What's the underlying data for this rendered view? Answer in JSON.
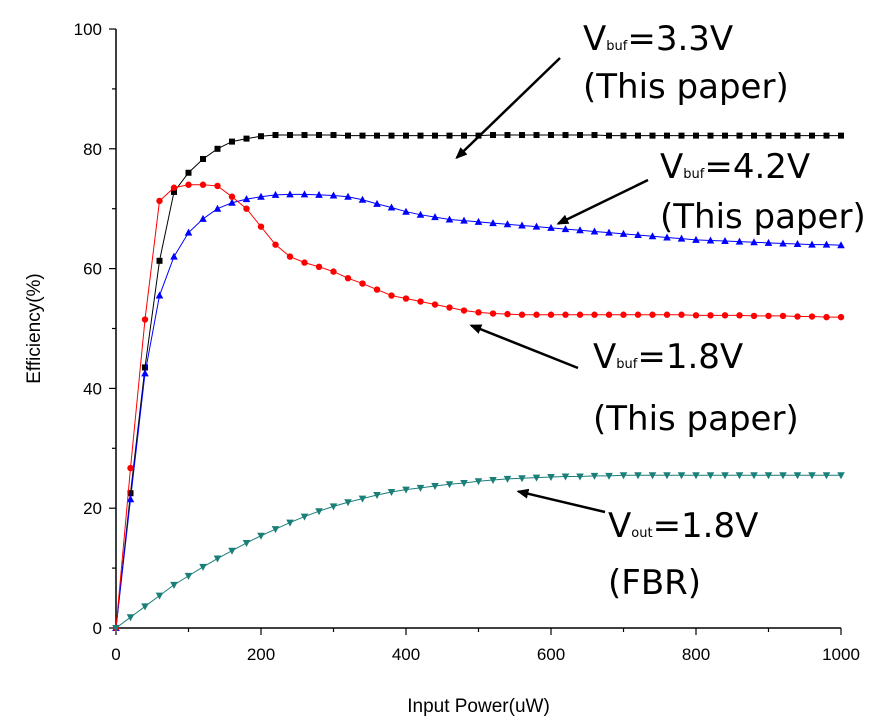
{
  "chart_data": {
    "type": "line",
    "xlabel": "Input Power(uW)",
    "ylabel": "Efficiency(%)",
    "xlim": [
      0,
      1000
    ],
    "ylim": [
      0,
      100
    ],
    "xticks": [
      0,
      200,
      400,
      600,
      800,
      1000
    ],
    "yticks": [
      0,
      20,
      40,
      60,
      80,
      100
    ],
    "grid": false,
    "series": [
      {
        "color": "#000000",
        "marker": "square",
        "x": [
          0,
          20,
          40,
          60,
          80,
          100,
          120,
          140,
          160,
          180,
          200,
          220,
          240,
          260,
          280,
          300,
          320,
          340,
          360,
          380,
          400,
          420,
          440,
          460,
          480,
          500,
          520,
          540,
          560,
          580,
          600,
          620,
          640,
          660,
          680,
          700,
          720,
          740,
          760,
          780,
          800,
          820,
          840,
          860,
          880,
          900,
          920,
          940,
          960,
          980,
          1000
        ],
        "y": [
          0,
          22.5,
          43.5,
          61.3,
          72.8,
          76,
          78.3,
          80,
          81.2,
          81.7,
          82.1,
          82.3,
          82.3,
          82.3,
          82.3,
          82.3,
          82.2,
          82.2,
          82.2,
          82.2,
          82.2,
          82.2,
          82.2,
          82.2,
          82.2,
          82.2,
          82.3,
          82.3,
          82.3,
          82.3,
          82.3,
          82.3,
          82.3,
          82.3,
          82.2,
          82.2,
          82.2,
          82.2,
          82.2,
          82.2,
          82.2,
          82.2,
          82.2,
          82.2,
          82.2,
          82.2,
          82.2,
          82.2,
          82.2,
          82.2,
          82.2
        ]
      },
      {
        "color": "#0000ff",
        "marker": "triangle-up",
        "x": [
          0,
          20,
          40,
          60,
          80,
          100,
          120,
          140,
          160,
          180,
          200,
          220,
          240,
          260,
          280,
          300,
          320,
          340,
          360,
          380,
          400,
          420,
          440,
          460,
          480,
          500,
          520,
          540,
          560,
          580,
          600,
          620,
          640,
          660,
          680,
          700,
          720,
          740,
          760,
          780,
          800,
          820,
          840,
          860,
          880,
          900,
          920,
          940,
          960,
          980,
          1000
        ],
        "y": [
          0,
          21.5,
          42.5,
          55.5,
          62,
          66,
          68.3,
          70,
          71,
          71.6,
          72,
          72.3,
          72.4,
          72.4,
          72.3,
          72.2,
          72,
          71.5,
          70.8,
          70.2,
          69.5,
          69,
          68.6,
          68.2,
          68,
          67.8,
          67.6,
          67.4,
          67.2,
          67,
          66.8,
          66.6,
          66.4,
          66.2,
          66,
          65.8,
          65.6,
          65.4,
          65.2,
          65,
          64.8,
          64.7,
          64.6,
          64.5,
          64.4,
          64.3,
          64.2,
          64.1,
          64,
          64,
          63.9
        ]
      },
      {
        "color": "#ff0000",
        "marker": "circle",
        "x": [
          0,
          20,
          40,
          60,
          80,
          100,
          120,
          140,
          160,
          180,
          200,
          220,
          240,
          260,
          280,
          300,
          320,
          340,
          360,
          380,
          400,
          420,
          440,
          460,
          480,
          500,
          520,
          540,
          560,
          580,
          600,
          620,
          640,
          660,
          680,
          700,
          720,
          740,
          760,
          780,
          800,
          820,
          840,
          860,
          880,
          900,
          920,
          940,
          960,
          980,
          1000
        ],
        "y": [
          0,
          26.7,
          51.5,
          71.3,
          73.5,
          74,
          74,
          73.8,
          72,
          70,
          67,
          64,
          62,
          61,
          60.3,
          59.5,
          58.4,
          57.5,
          56.5,
          55.5,
          55,
          54.5,
          54,
          53.5,
          53,
          52.7,
          52.5,
          52.4,
          52.3,
          52.3,
          52.3,
          52.3,
          52.3,
          52.3,
          52.3,
          52.3,
          52.3,
          52.3,
          52.3,
          52.3,
          52.2,
          52.2,
          52.2,
          52.2,
          52.1,
          52.1,
          52.1,
          52,
          52,
          51.9,
          51.9
        ]
      },
      {
        "color": "#1a7f78",
        "marker": "triangle-down",
        "x": [
          0,
          20,
          40,
          60,
          80,
          100,
          120,
          140,
          160,
          180,
          200,
          220,
          240,
          260,
          280,
          300,
          320,
          340,
          360,
          380,
          400,
          420,
          440,
          460,
          480,
          500,
          520,
          540,
          560,
          580,
          600,
          620,
          640,
          660,
          680,
          700,
          720,
          740,
          760,
          780,
          800,
          820,
          840,
          860,
          880,
          900,
          920,
          940,
          960,
          980,
          1000
        ],
        "y": [
          0,
          1.8,
          3.6,
          5.4,
          7.2,
          8.7,
          10.2,
          11.6,
          12.9,
          14.2,
          15.4,
          16.5,
          17.6,
          18.6,
          19.5,
          20.3,
          21,
          21.6,
          22.2,
          22.7,
          23.1,
          23.4,
          23.7,
          24,
          24.2,
          24.5,
          24.7,
          24.9,
          25,
          25.1,
          25.2,
          25.3,
          25.3,
          25.4,
          25.4,
          25.5,
          25.5,
          25.5,
          25.5,
          25.5,
          25.5,
          25.5,
          25.5,
          25.5,
          25.5,
          25.5,
          25.5,
          25.5,
          25.5,
          25.5,
          25.5
        ]
      }
    ],
    "annotations": [
      {
        "main": "V",
        "sub": "buf",
        "rest": "=3.3V",
        "line2": "(This paper)",
        "arrow_to": [
          470,
          78.5
        ]
      },
      {
        "main": "V",
        "sub": "buf",
        "rest": "=4.2V",
        "line2": "(This paper)",
        "arrow_to": [
          610,
          67.5
        ]
      },
      {
        "main": "V",
        "sub": "buf",
        "rest": "=1.8V",
        "line2": "(This paper)",
        "arrow_to": [
          490,
          50.5
        ]
      },
      {
        "main": "V",
        "sub": "out",
        "rest": "=1.8V",
        "line2": "(FBR)",
        "arrow_to": [
          555,
          22.8
        ]
      }
    ]
  }
}
